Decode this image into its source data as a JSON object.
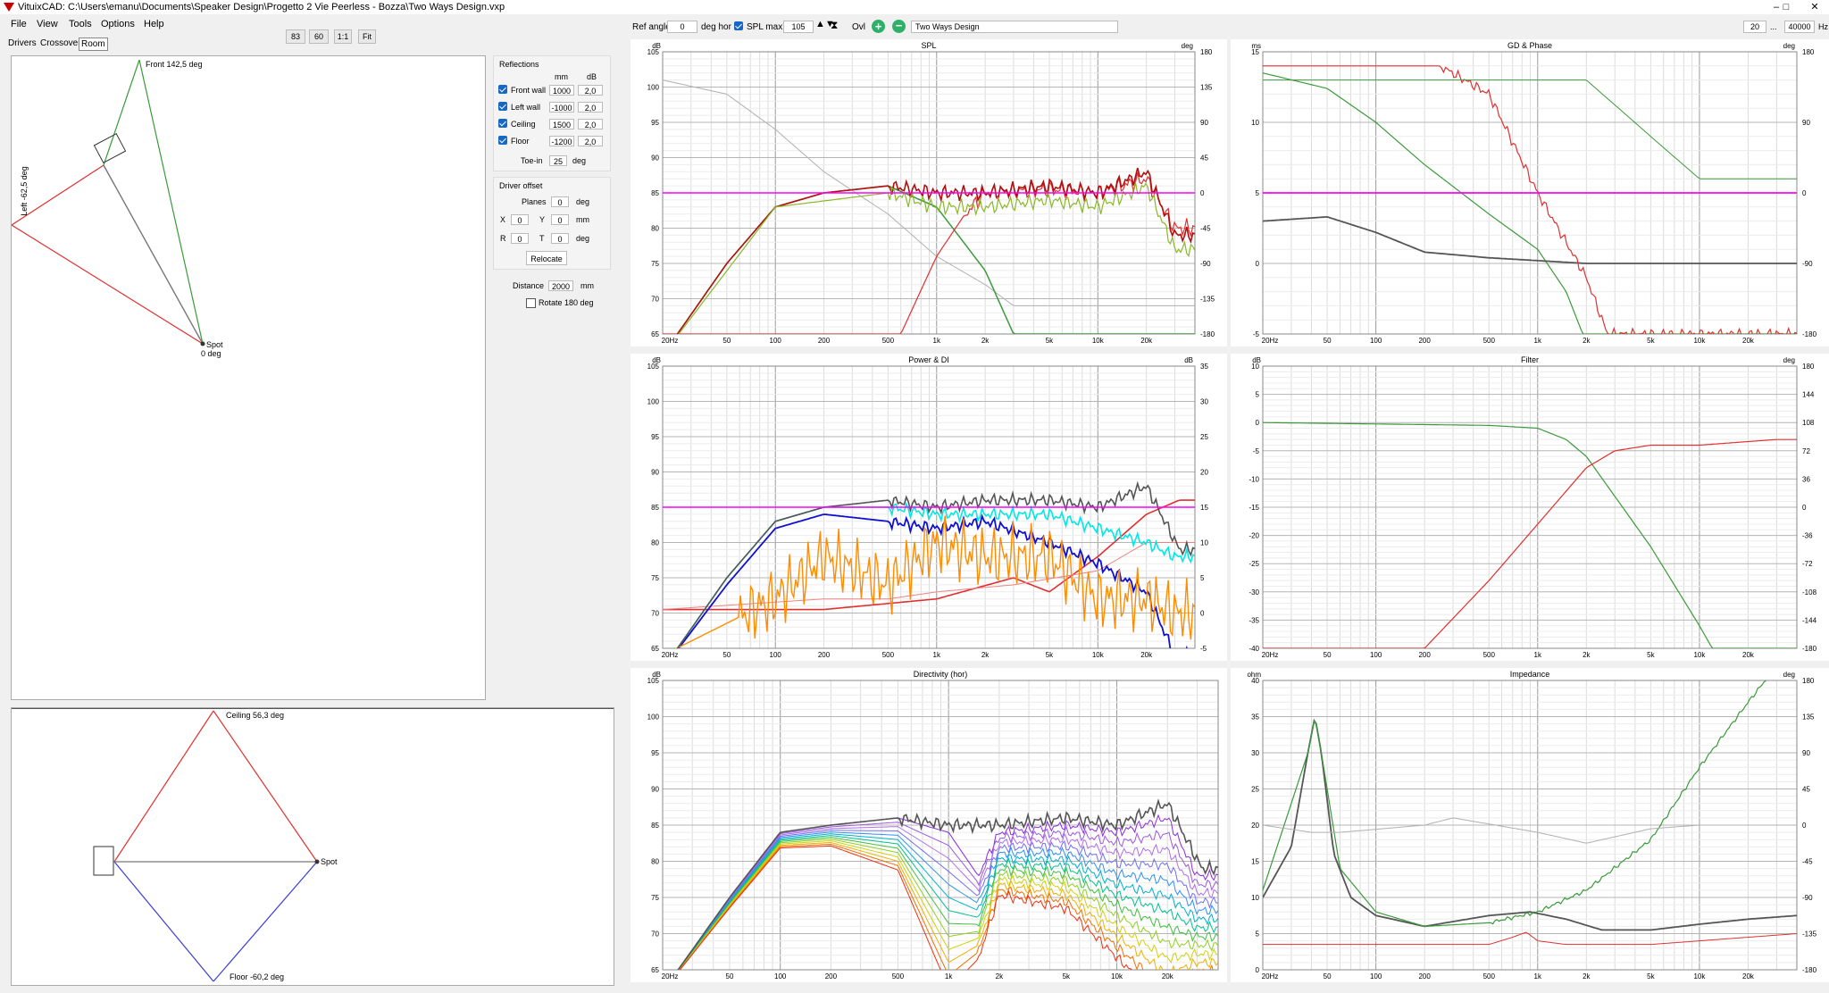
{
  "window": {
    "title": "VituixCAD: C:\\Users\\emanu\\Documents\\Speaker Design\\Progetto 2 Vie Peerless - Bozza\\Two Ways Design.vxp",
    "buttons": [
      "–",
      "□",
      "✕"
    ]
  },
  "menu": [
    "File",
    "View",
    "Tools",
    "Options",
    "Help"
  ],
  "tabs": [
    "Drivers",
    "Crossover",
    "Room"
  ],
  "zoom_buttons": [
    "83",
    "60",
    "1:1",
    "Fit"
  ],
  "toolbar": {
    "ref_angle_label": "Ref angle",
    "ref_angle": "0",
    "deg_hor": "deg hor",
    "spl_max_label": "SPL max",
    "spl_max": "105",
    "ovl_label": "Ovl",
    "design_name": "Two Ways Design",
    "freq_min": "20",
    "freq_sep": "...",
    "freq_max": "40000",
    "hz": "Hz"
  },
  "room": {
    "top_view": {
      "front_label": "Front 142,5 deg",
      "left_label": "Left -62,5 deg",
      "spot_label": "Spot",
      "spot_deg": "0 deg"
    },
    "side_view": {
      "ceiling_label": "Ceiling 56,3 deg",
      "floor_label": "Floor -60,2 deg",
      "spot_label": "Spot"
    },
    "reflections": {
      "title": "Reflections",
      "col_mm": "mm",
      "col_db": "dB",
      "rows": [
        {
          "label": "Front wall",
          "mm": "1000",
          "db": "2,0"
        },
        {
          "label": "Left wall",
          "mm": "-1000",
          "db": "2,0"
        },
        {
          "label": "Ceiling",
          "mm": "1500",
          "db": "2,0"
        },
        {
          "label": "Floor",
          "mm": "-1200",
          "db": "2,0"
        }
      ],
      "toein_label": "Toe-in",
      "toein": "25",
      "toein_unit": "deg"
    },
    "offset": {
      "title": "Driver offset",
      "planes_label": "Planes",
      "planes": "0",
      "planes_unit": "deg",
      "x_label": "X",
      "x": "0",
      "y_label": "Y",
      "y": "0",
      "xy_unit": "mm",
      "r_label": "R",
      "r": "0",
      "t_label": "T",
      "t": "0",
      "rt_unit": "deg",
      "relocate": "Relocate"
    },
    "distance_label": "Distance",
    "distance": "2000",
    "distance_unit": "mm",
    "rotate_label": "Rotate 180 deg"
  },
  "freq_ticks": [
    "20Hz",
    "50",
    "100",
    "200",
    "500",
    "1k",
    "2k",
    "5k",
    "10k",
    "20k"
  ],
  "graphs": {
    "spl": {
      "title": "SPL",
      "ylab": "dB",
      "y2lab": "deg",
      "yticks": [
        "105",
        "100",
        "95",
        "90",
        "85",
        "80",
        "75",
        "70",
        "65"
      ],
      "y2ticks": [
        "180",
        "135",
        "90",
        "45",
        "0",
        "-45",
        "-90",
        "-135",
        "-180"
      ]
    },
    "gd": {
      "title": "GD & Phase",
      "ylab": "ms",
      "y2lab": "deg",
      "yticks": [
        "15",
        "10",
        "5",
        "0",
        "-5"
      ],
      "y2ticks": [
        "180",
        "90",
        "0",
        "-90",
        "-180"
      ]
    },
    "power": {
      "title": "Power & DI",
      "ylab": "dB",
      "y2lab": "dB",
      "yticks": [
        "105",
        "100",
        "95",
        "90",
        "85",
        "80",
        "75",
        "70",
        "65"
      ],
      "y2ticks": [
        "35",
        "30",
        "25",
        "20",
        "15",
        "10",
        "5",
        "0",
        "-5"
      ]
    },
    "filter": {
      "title": "Filter",
      "ylab": "dB",
      "y2lab": "deg",
      "yticks": [
        "10",
        "5",
        "0",
        "-5",
        "-10",
        "-15",
        "-20",
        "-25",
        "-30",
        "-35",
        "-40"
      ],
      "y2ticks": [
        "180",
        "144",
        "108",
        "72",
        "36",
        "0",
        "-36",
        "-72",
        "-108",
        "-144",
        "-180"
      ]
    },
    "directivity": {
      "title": "Directivity (hor)",
      "ylab": "dB",
      "yticks": [
        "105",
        "100",
        "95",
        "90",
        "85",
        "80",
        "75",
        "70",
        "65"
      ]
    },
    "impedance": {
      "title": "Impedance",
      "ylab": "ohm",
      "y2lab": "deg",
      "yticks": [
        "40",
        "35",
        "30",
        "25",
        "20",
        "15",
        "10",
        "5",
        "0"
      ],
      "y2ticks": [
        "180",
        "135",
        "90",
        "45",
        "0",
        "-45",
        "-90",
        "-135",
        "-180"
      ]
    }
  },
  "colors": {
    "magenta": "#ff00ff",
    "red": "#e03030",
    "green": "#3a9a3a",
    "darkgray": "#555555",
    "lightgray": "#b0b0b0",
    "blue": "#1010d0",
    "cyan": "#00e8e8",
    "orange": "#ff8c00",
    "darkred": "#b01010",
    "olive": "#8ab828"
  }
}
